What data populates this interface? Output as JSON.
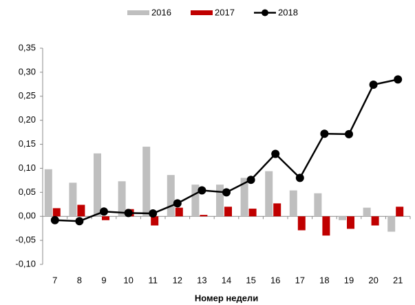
{
  "chart_data": {
    "type": "bar_line",
    "x_label": "Номер недели",
    "categories": [
      "7",
      "8",
      "9",
      "10",
      "11",
      "12",
      "13",
      "14",
      "15",
      "16",
      "17",
      "18",
      "19",
      "20",
      "21"
    ],
    "series": [
      {
        "name": "2016",
        "type": "bar",
        "color": "#bfbfbf",
        "values": [
          0.098,
          0.07,
          0.131,
          0.073,
          0.145,
          0.086,
          0.066,
          0.066,
          0.08,
          0.094,
          0.054,
          0.048,
          -0.008,
          0.018,
          -0.032
        ]
      },
      {
        "name": "2017",
        "type": "bar",
        "color": "#c00000",
        "values": [
          0.017,
          0.024,
          -0.008,
          0.015,
          -0.019,
          0.018,
          0.003,
          0.02,
          0.016,
          0.027,
          -0.029,
          -0.04,
          -0.026,
          -0.019,
          0.02
        ]
      },
      {
        "name": "2018",
        "type": "line",
        "color": "#000000",
        "values": [
          -0.008,
          -0.01,
          0.01,
          0.007,
          0.006,
          0.027,
          0.054,
          0.05,
          0.076,
          0.13,
          0.08,
          0.172,
          0.171,
          0.274,
          0.285
        ]
      }
    ],
    "ylim": [
      -0.1,
      0.35
    ],
    "yticks": [
      {
        "value": -0.1,
        "label": "-0,10"
      },
      {
        "value": -0.05,
        "label": "-0,05"
      },
      {
        "value": 0,
        "label": "0,00"
      },
      {
        "value": 0.05,
        "label": "0,05"
      },
      {
        "value": 0.1,
        "label": "0,10"
      },
      {
        "value": 0.15,
        "label": "0,15"
      },
      {
        "value": 0.2,
        "label": "0,20"
      },
      {
        "value": 0.25,
        "label": "0,25"
      },
      {
        "value": 0.3,
        "label": "0,30"
      },
      {
        "value": 0.35,
        "label": "0,35"
      }
    ],
    "grid": false,
    "legend": "top"
  }
}
